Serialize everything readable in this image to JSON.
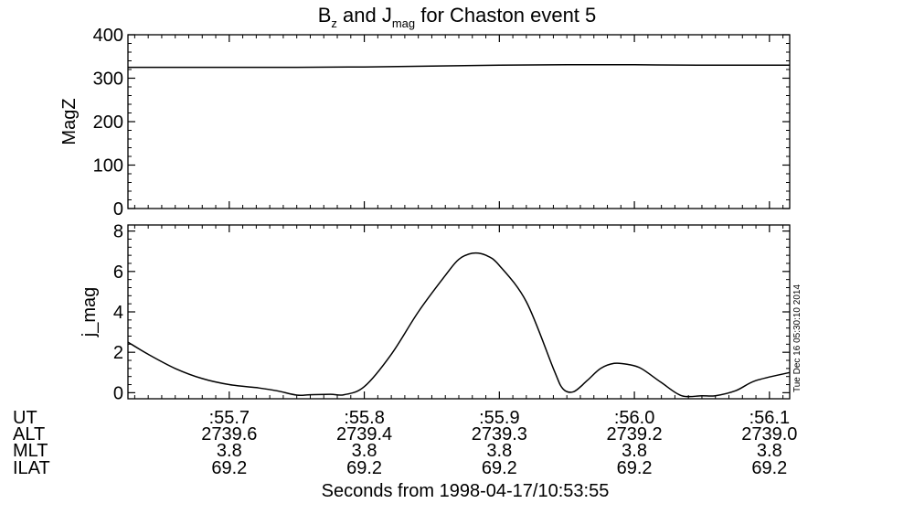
{
  "title": {
    "part1_base": "B",
    "part1_sub": "z",
    "part2_base": " and J",
    "part2_sub": "mag",
    "part3": " for Chaston event 5"
  },
  "chart_data": [
    {
      "type": "line",
      "ylabel": "MagZ",
      "ylim": [
        0,
        400
      ],
      "yticks": [
        0,
        100,
        200,
        300,
        400
      ],
      "xlim": [
        55.625,
        56.115
      ],
      "x": [
        55.625,
        55.7,
        55.75,
        55.8,
        55.85,
        55.9,
        55.95,
        56.0,
        56.05,
        56.115
      ],
      "y": [
        325,
        325,
        325,
        326,
        328,
        330,
        331,
        331,
        330,
        330
      ]
    },
    {
      "type": "line",
      "ylabel": "j_mag",
      "ylim": [
        -0.3,
        8.3
      ],
      "yticks": [
        0,
        2,
        4,
        6,
        8
      ],
      "xlim": [
        55.625,
        56.115
      ],
      "x": [
        55.625,
        55.64,
        55.66,
        55.68,
        55.7,
        55.72,
        55.735,
        55.75,
        55.76,
        55.775,
        55.785,
        55.8,
        55.82,
        55.84,
        55.86,
        55.87,
        55.88,
        55.89,
        55.9,
        55.92,
        55.94,
        55.947,
        55.955,
        55.965,
        55.975,
        55.985,
        55.995,
        56.005,
        56.02,
        56.035,
        56.05,
        56.06,
        56.075,
        56.09,
        56.115
      ],
      "y": [
        2.5,
        1.9,
        1.2,
        0.7,
        0.4,
        0.25,
        0.1,
        -0.12,
        -0.1,
        -0.08,
        -0.1,
        0.3,
        1.9,
        4.0,
        5.8,
        6.6,
        6.9,
        6.8,
        6.3,
        4.5,
        1.2,
        0.2,
        0.05,
        0.6,
        1.2,
        1.45,
        1.4,
        1.2,
        0.5,
        -0.15,
        -0.15,
        -0.15,
        0.1,
        0.6,
        1.0
      ]
    }
  ],
  "annotation_rows": {
    "labels": [
      "UT",
      "ALT",
      "MLT",
      "ILAT"
    ],
    "ticks": [
      {
        "x": 55.7,
        "UT": ":55.7",
        "ALT": "2739.6",
        "MLT": "3.8",
        "ILAT": "69.2"
      },
      {
        "x": 55.8,
        "UT": ":55.8",
        "ALT": "2739.4",
        "MLT": "3.8",
        "ILAT": "69.2"
      },
      {
        "x": 55.9,
        "UT": ":55.9",
        "ALT": "2739.3",
        "MLT": "3.8",
        "ILAT": "69.2"
      },
      {
        "x": 56.0,
        "UT": ":56.0",
        "ALT": "2739.2",
        "MLT": "3.8",
        "ILAT": "69.2"
      },
      {
        "x": 56.1,
        "UT": ":56.1",
        "ALT": "2739.0",
        "MLT": "3.8",
        "ILAT": "69.2"
      }
    ]
  },
  "xlabel": "Seconds from 1998-04-17/10:53:55",
  "timestamp": "Tue Dec 16 05:30:10 2014"
}
